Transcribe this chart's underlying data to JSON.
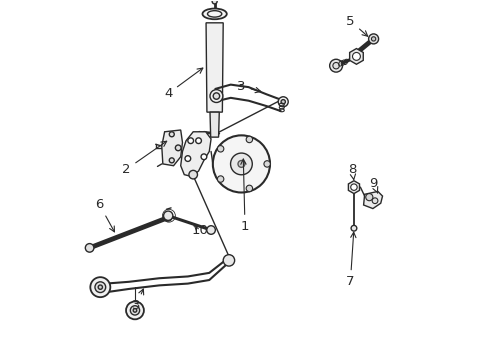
{
  "bg_color": "#ffffff",
  "line_color": "#2a2a2a",
  "lw": 1.0,
  "figsize": [
    4.9,
    3.6
  ],
  "dpi": 100,
  "labels": {
    "1": [
      0.5,
      0.37,
      0.5,
      0.43
    ],
    "2": [
      0.17,
      0.53,
      0.255,
      0.555
    ],
    "3a": [
      0.49,
      0.76,
      0.455,
      0.73
    ],
    "3b": [
      0.2,
      0.15,
      0.23,
      0.175
    ],
    "4": [
      0.285,
      0.74,
      0.34,
      0.77
    ],
    "5": [
      0.795,
      0.945,
      0.81,
      0.9
    ],
    "6": [
      0.095,
      0.43,
      0.125,
      0.39
    ],
    "7": [
      0.795,
      0.215,
      0.795,
      0.265
    ],
    "8": [
      0.8,
      0.53,
      0.8,
      0.49
    ],
    "9": [
      0.855,
      0.49,
      0.84,
      0.475
    ],
    "10": [
      0.375,
      0.36,
      0.36,
      0.385
    ]
  }
}
